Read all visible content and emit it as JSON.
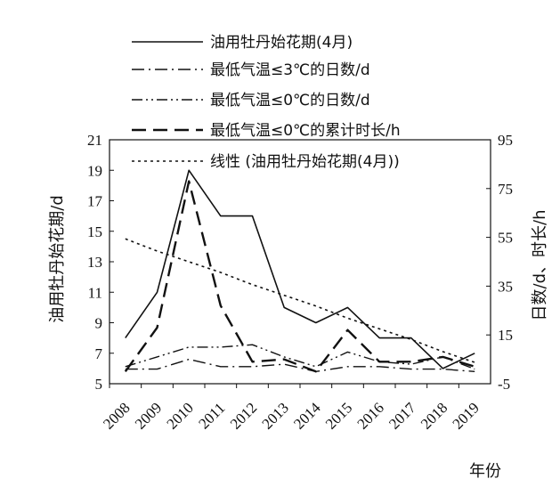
{
  "chart_data": {
    "type": "line",
    "title": "",
    "xlabel": "年份",
    "ylabel_left": "油用牡丹始花期/d",
    "ylabel_right": "日数/d、时长/h",
    "categories": [
      "2008",
      "2009",
      "2010",
      "2011",
      "2012",
      "2013",
      "2014",
      "2015",
      "2016",
      "2017",
      "2018",
      "2019"
    ],
    "ylim_left": [
      5,
      21
    ],
    "yticks_left": [
      5,
      7,
      9,
      11,
      13,
      15,
      17,
      19,
      21
    ],
    "ylim_right": [
      -5,
      95
    ],
    "yticks_right": [
      -5,
      15,
      35,
      55,
      75,
      95
    ],
    "grid": false,
    "legend_position": "top",
    "series": [
      {
        "name": "油用牡丹始花期(4月)",
        "axis": "left",
        "style": "solid",
        "values": [
          8,
          11,
          19,
          16,
          16,
          10,
          9,
          10,
          8,
          8,
          6,
          7
        ]
      },
      {
        "name": "最低气温≤3℃的日数/d",
        "axis": "right",
        "style": "dashdot",
        "values": [
          1,
          1,
          5,
          2,
          2,
          3,
          0,
          2,
          2,
          1,
          1,
          0
        ]
      },
      {
        "name": "最低气温≤0℃的日数/d",
        "axis": "right",
        "style": "dashdotdot",
        "values": [
          2,
          6,
          10,
          10,
          11,
          6,
          2,
          8,
          4,
          3,
          6,
          1
        ]
      },
      {
        "name": "最低气温≤0℃的累计时长/h",
        "axis": "right",
        "style": "longdash",
        "values": [
          0,
          18,
          78,
          27,
          4,
          5,
          0,
          17,
          4,
          4,
          6,
          2
        ]
      },
      {
        "name": "线性 (油用牡丹始花期(4月))",
        "axis": "left",
        "style": "dotted",
        "trendline": true,
        "values": [
          14.5,
          13.7,
          13.0,
          12.3,
          11.5,
          10.8,
          10.1,
          9.3,
          8.6,
          7.9,
          7.1,
          6.4
        ]
      }
    ]
  }
}
